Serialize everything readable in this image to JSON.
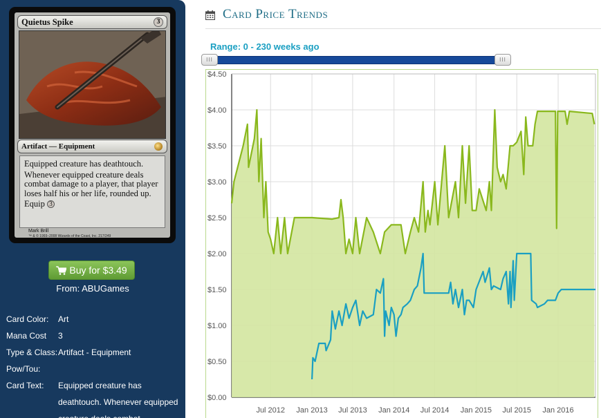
{
  "card": {
    "name": "Quietus Spike",
    "mana_cost_symbol": "3",
    "type_line": "Artifact — Equipment",
    "rules_text_1": "Equipped creature has deathtouch.",
    "rules_text_2": "Whenever equipped creature deals combat damage to a player, that player loses half his or her life, rounded up.",
    "rules_text_3": "Equip",
    "equip_cost": "3",
    "artist": "Mark Brill",
    "copyright": "™ & © 1993–2008 Wizards of the Coast, Inc. 217/249"
  },
  "buy": {
    "label": "Buy for $3.49",
    "from": "From: ABUGames"
  },
  "attributes": {
    "color_label": "Card Color:",
    "color_value": "Art",
    "mana_label": "Mana Cost",
    "mana_value": "3",
    "type_label": "Type & Class:",
    "type_value": "Artifact - Equipment",
    "powtou_label": "Pow/Tou:",
    "powtou_value": "",
    "text_label": "Card Text:",
    "text_value": "Equipped creature has deathtouch. Whenever equipped creature deals combat"
  },
  "main": {
    "title": "Card Price Trends",
    "range_label": "Range: 0 - 230 weeks ago",
    "slider": {
      "min": 0,
      "max": 230
    }
  },
  "colors": {
    "sidebar_bg": "#17395e",
    "buy_button": "#6aab3e",
    "title": "#1f6d86",
    "retail_line": "#8ab81d",
    "retail_fill": "#d3e6a0",
    "buylist_line": "#1a9fc2",
    "slider_range": "#16499a"
  },
  "icons": {
    "cart": "shopping-cart-icon",
    "calendar": "calendar-icon"
  },
  "chart_data": {
    "type": "line",
    "title": "",
    "xlabel": "",
    "ylabel": "",
    "ylim": [
      0,
      4.5
    ],
    "y_ticks": [
      "$0.00",
      "$0.50",
      "$1.00",
      "$1.50",
      "$2.00",
      "$2.50",
      "$3.00",
      "$3.50",
      "$4.00",
      "$4.50"
    ],
    "x_range": [
      "2012-01-10",
      "2016-06-15"
    ],
    "x_ticks": [
      {
        "label": "Jul 2012",
        "date": "2012-07-01"
      },
      {
        "label": "Jan 2013",
        "date": "2013-01-01"
      },
      {
        "label": "Jul 2013",
        "date": "2013-07-01"
      },
      {
        "label": "Jan 2014",
        "date": "2014-01-01"
      },
      {
        "label": "Jul 2014",
        "date": "2014-07-01"
      },
      {
        "label": "Jan 2015",
        "date": "2015-01-01"
      },
      {
        "label": "Jul 2015",
        "date": "2015-07-01"
      },
      {
        "label": "Jan 2016",
        "date": "2016-01-01"
      }
    ],
    "grid": true,
    "series": [
      {
        "name": "",
        "style": "area",
        "points": [
          [
            "2012-01-10",
            2.7
          ],
          [
            "2012-01-20",
            3.0
          ],
          [
            "2012-03-01",
            3.5
          ],
          [
            "2012-03-20",
            3.8
          ],
          [
            "2012-03-25",
            3.2
          ],
          [
            "2012-04-20",
            3.6
          ],
          [
            "2012-05-01",
            4.0
          ],
          [
            "2012-05-10",
            3.0
          ],
          [
            "2012-05-20",
            3.6
          ],
          [
            "2012-06-01",
            2.5
          ],
          [
            "2012-06-10",
            3.0
          ],
          [
            "2012-06-20",
            2.3
          ],
          [
            "2012-07-01",
            2.2
          ],
          [
            "2012-07-15",
            2.0
          ],
          [
            "2012-08-01",
            2.5
          ],
          [
            "2012-08-15",
            2.0
          ],
          [
            "2012-09-01",
            2.5
          ],
          [
            "2012-09-15",
            2.0
          ],
          [
            "2012-10-15",
            2.5
          ],
          [
            "2013-01-01",
            2.5
          ],
          [
            "2013-04-01",
            2.48
          ],
          [
            "2013-05-01",
            2.5
          ],
          [
            "2013-05-10",
            2.75
          ],
          [
            "2013-05-20",
            2.5
          ],
          [
            "2013-06-01",
            2.0
          ],
          [
            "2013-06-15",
            2.2
          ],
          [
            "2013-07-01",
            2.0
          ],
          [
            "2013-07-15",
            2.5
          ],
          [
            "2013-08-01",
            2.0
          ],
          [
            "2013-09-01",
            2.5
          ],
          [
            "2013-10-01",
            2.3
          ],
          [
            "2013-11-01",
            2.0
          ],
          [
            "2013-11-20",
            2.3
          ],
          [
            "2013-12-20",
            2.4
          ],
          [
            "2014-02-01",
            2.4
          ],
          [
            "2014-02-20",
            2.0
          ],
          [
            "2014-03-15",
            2.3
          ],
          [
            "2014-04-01",
            2.5
          ],
          [
            "2014-04-20",
            2.3
          ],
          [
            "2014-05-10",
            3.0
          ],
          [
            "2014-05-20",
            2.3
          ],
          [
            "2014-06-01",
            2.6
          ],
          [
            "2014-06-10",
            2.4
          ],
          [
            "2014-07-01",
            3.0
          ],
          [
            "2014-07-15",
            2.4
          ],
          [
            "2014-08-15",
            3.5
          ],
          [
            "2014-09-01",
            2.5
          ],
          [
            "2014-10-01",
            3.0
          ],
          [
            "2014-10-15",
            2.5
          ],
          [
            "2014-11-01",
            3.5
          ],
          [
            "2014-11-15",
            2.7
          ],
          [
            "2014-12-01",
            3.5
          ],
          [
            "2014-12-15",
            2.6
          ],
          [
            "2015-01-01",
            2.6
          ],
          [
            "2015-01-15",
            2.9
          ],
          [
            "2015-02-15",
            2.6
          ],
          [
            "2015-03-01",
            3.0
          ],
          [
            "2015-03-10",
            2.6
          ],
          [
            "2015-03-25",
            4.0
          ],
          [
            "2015-04-05",
            3.2
          ],
          [
            "2015-04-20",
            3.0
          ],
          [
            "2015-05-01",
            3.1
          ],
          [
            "2015-05-15",
            2.9
          ],
          [
            "2015-06-01",
            3.5
          ],
          [
            "2015-06-15",
            3.5
          ],
          [
            "2015-07-01",
            3.55
          ],
          [
            "2015-07-20",
            3.7
          ],
          [
            "2015-08-01",
            3.1
          ],
          [
            "2015-08-10",
            3.9
          ],
          [
            "2015-08-20",
            3.5
          ],
          [
            "2015-09-10",
            3.5
          ],
          [
            "2015-09-20",
            3.8
          ],
          [
            "2015-10-01",
            3.98
          ],
          [
            "2015-12-20",
            3.98
          ],
          [
            "2015-12-25",
            2.35
          ],
          [
            "2015-12-30",
            3.98
          ],
          [
            "2016-02-01",
            3.98
          ],
          [
            "2016-02-10",
            3.8
          ],
          [
            "2016-02-20",
            3.98
          ],
          [
            "2016-06-01",
            3.95
          ],
          [
            "2016-06-10",
            3.8
          ]
        ]
      },
      {
        "name": "",
        "style": "line",
        "points": [
          [
            "2013-01-01",
            0.25
          ],
          [
            "2013-01-05",
            0.55
          ],
          [
            "2013-01-15",
            0.5
          ],
          [
            "2013-02-01",
            0.75
          ],
          [
            "2013-03-01",
            0.75
          ],
          [
            "2013-03-05",
            0.65
          ],
          [
            "2013-03-25",
            0.8
          ],
          [
            "2013-04-01",
            1.2
          ],
          [
            "2013-04-15",
            0.95
          ],
          [
            "2013-05-01",
            1.2
          ],
          [
            "2013-05-15",
            1.0
          ],
          [
            "2013-06-01",
            1.3
          ],
          [
            "2013-06-15",
            1.1
          ],
          [
            "2013-07-01",
            1.25
          ],
          [
            "2013-07-15",
            1.35
          ],
          [
            "2013-08-01",
            1.0
          ],
          [
            "2013-08-15",
            1.2
          ],
          [
            "2013-09-01",
            1.1
          ],
          [
            "2013-10-01",
            1.15
          ],
          [
            "2013-10-15",
            1.5
          ],
          [
            "2013-11-01",
            1.45
          ],
          [
            "2013-11-15",
            1.65
          ],
          [
            "2013-11-20",
            0.85
          ],
          [
            "2013-11-25",
            1.2
          ],
          [
            "2013-12-10",
            1.0
          ],
          [
            "2013-12-20",
            1.25
          ],
          [
            "2014-01-01",
            1.15
          ],
          [
            "2014-01-10",
            0.85
          ],
          [
            "2014-01-20",
            1.1
          ],
          [
            "2014-02-01",
            1.15
          ],
          [
            "2014-02-10",
            1.25
          ],
          [
            "2014-03-01",
            1.3
          ],
          [
            "2014-03-15",
            1.35
          ],
          [
            "2014-04-01",
            1.5
          ],
          [
            "2014-04-15",
            1.55
          ],
          [
            "2014-05-01",
            1.8
          ],
          [
            "2014-05-10",
            2.0
          ],
          [
            "2014-05-15",
            1.45
          ],
          [
            "2014-06-01",
            1.45
          ],
          [
            "2014-09-01",
            1.45
          ],
          [
            "2014-09-10",
            1.6
          ],
          [
            "2014-09-20",
            1.3
          ],
          [
            "2014-10-01",
            1.5
          ],
          [
            "2014-10-15",
            1.25
          ],
          [
            "2014-11-01",
            1.5
          ],
          [
            "2014-11-10",
            1.15
          ],
          [
            "2014-11-20",
            1.35
          ],
          [
            "2014-12-01",
            1.35
          ],
          [
            "2014-12-20",
            1.25
          ],
          [
            "2015-01-01",
            1.5
          ],
          [
            "2015-02-01",
            1.75
          ],
          [
            "2015-02-10",
            1.6
          ],
          [
            "2015-03-01",
            1.8
          ],
          [
            "2015-03-10",
            1.5
          ],
          [
            "2015-03-20",
            1.55
          ],
          [
            "2015-04-20",
            1.5
          ],
          [
            "2015-05-01",
            1.65
          ],
          [
            "2015-05-15",
            1.75
          ],
          [
            "2015-05-25",
            1.3
          ],
          [
            "2015-06-01",
            1.75
          ],
          [
            "2015-06-05",
            1.25
          ],
          [
            "2015-06-15",
            1.9
          ],
          [
            "2015-06-20",
            1.35
          ],
          [
            "2015-07-01",
            2.0
          ],
          [
            "2015-09-01",
            2.0
          ],
          [
            "2015-09-05",
            1.35
          ],
          [
            "2015-09-25",
            1.3
          ],
          [
            "2015-10-01",
            1.25
          ],
          [
            "2015-11-01",
            1.3
          ],
          [
            "2015-11-15",
            1.35
          ],
          [
            "2015-12-20",
            1.35
          ],
          [
            "2016-01-01",
            1.45
          ],
          [
            "2016-01-15",
            1.5
          ],
          [
            "2016-06-15",
            1.5
          ]
        ]
      }
    ]
  }
}
